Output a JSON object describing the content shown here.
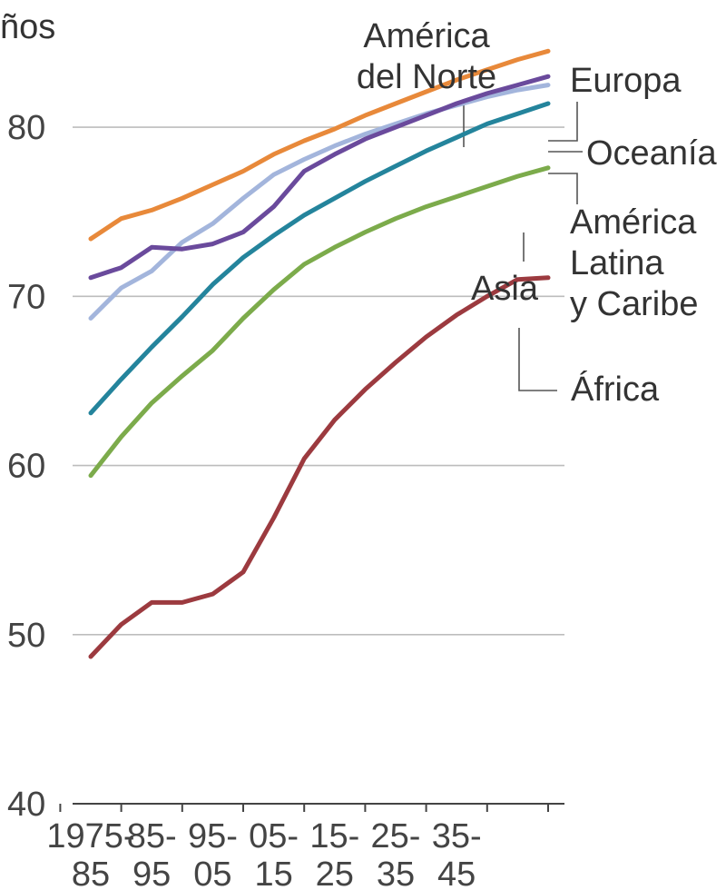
{
  "chart_data": {
    "type": "line",
    "ylabel": "ños",
    "ylim": [
      40,
      85
    ],
    "y_ticks": [
      40,
      50,
      60,
      70,
      80
    ],
    "grid": true,
    "x": [
      1975,
      1980,
      1985,
      1990,
      1995,
      2000,
      2005,
      2010,
      2015,
      2020,
      2025,
      2030,
      2035,
      2040,
      2045,
      2050
    ],
    "x_tick_labels": [
      {
        "top": "1975-",
        "bottom": "85"
      },
      {
        "top": "85-",
        "bottom": "95"
      },
      {
        "top": "95-",
        "bottom": "05"
      },
      {
        "top": "05-",
        "bottom": "15"
      },
      {
        "top": "15-",
        "bottom": "25"
      },
      {
        "top": "25-",
        "bottom": "35"
      },
      {
        "top": "35-",
        "bottom": "45"
      }
    ],
    "series": [
      {
        "name": "América del Norte",
        "label_lines": [
          "América",
          "del Norte"
        ],
        "color": "#e8893a",
        "values": [
          73.4,
          74.6,
          75.1,
          75.8,
          76.6,
          77.4,
          78.4,
          79.2,
          79.9,
          80.7,
          81.4,
          82.1,
          82.8,
          83.4,
          84.0,
          84.5
        ]
      },
      {
        "name": "Europa",
        "label_lines": [
          "Europa"
        ],
        "color": "#6a4a9c",
        "values": [
          71.1,
          71.7,
          72.9,
          72.8,
          73.1,
          73.8,
          75.3,
          77.4,
          78.4,
          79.3,
          80.0,
          80.7,
          81.4,
          82.0,
          82.5,
          83.0
        ]
      },
      {
        "name": "Oceanía",
        "label_lines": [
          "Oceanía"
        ],
        "color": "#a3b5dc",
        "values": [
          68.7,
          70.5,
          71.5,
          73.2,
          74.3,
          75.8,
          77.2,
          78.1,
          78.9,
          79.6,
          80.2,
          80.8,
          81.3,
          81.8,
          82.2,
          82.5
        ]
      },
      {
        "name": "América Latina y Caribe",
        "label_lines": [
          "América",
          "Latina",
          "y Caribe"
        ],
        "color": "#24849c",
        "values": [
          63.1,
          65.1,
          67.0,
          68.8,
          70.7,
          72.3,
          73.6,
          74.8,
          75.8,
          76.8,
          77.7,
          78.6,
          79.4,
          80.2,
          80.8,
          81.4
        ]
      },
      {
        "name": "Asia",
        "label_lines": [
          "Asia"
        ],
        "color": "#7cab4b",
        "values": [
          59.4,
          61.7,
          63.7,
          65.3,
          66.8,
          68.7,
          70.4,
          71.9,
          72.9,
          73.8,
          74.6,
          75.3,
          75.9,
          76.5,
          77.1,
          77.6
        ]
      },
      {
        "name": "África",
        "label_lines": [
          "África"
        ],
        "color": "#9c3a3f",
        "values": [
          48.7,
          50.6,
          51.9,
          51.9,
          52.4,
          53.7,
          56.9,
          60.4,
          62.7,
          64.5,
          66.1,
          67.6,
          68.9,
          70.0,
          71.0,
          71.1
        ]
      }
    ]
  }
}
